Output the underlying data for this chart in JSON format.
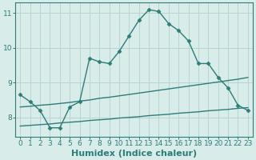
{
  "background_color": "#d8ecea",
  "grid_color": "#b8d4d0",
  "line_color": "#2d7d78",
  "xlabel": "Humidex (Indice chaleur)",
  "xlim": [
    -0.5,
    23.5
  ],
  "ylim": [
    7.45,
    11.3
  ],
  "yticks": [
    8,
    9,
    10,
    11
  ],
  "xticks": [
    0,
    1,
    2,
    3,
    4,
    5,
    6,
    7,
    8,
    9,
    10,
    11,
    12,
    13,
    14,
    15,
    16,
    17,
    18,
    19,
    20,
    21,
    22,
    23
  ],
  "line1_x": [
    0,
    1,
    2,
    3,
    4,
    5,
    6,
    7,
    8,
    9,
    10,
    11,
    12,
    13,
    14,
    15,
    16,
    17,
    18,
    19,
    20,
    21,
    22,
    23
  ],
  "line1_y": [
    8.65,
    8.45,
    8.2,
    7.7,
    7.7,
    8.3,
    8.45,
    9.7,
    9.6,
    9.55,
    9.9,
    10.35,
    10.8,
    11.1,
    11.05,
    10.7,
    10.5,
    10.2,
    9.55,
    9.55,
    9.15,
    8.85,
    8.35,
    8.2
  ],
  "line2_x": [
    0,
    1,
    2,
    3,
    4,
    5,
    6,
    7,
    8,
    9,
    10,
    11,
    12,
    13,
    14,
    15,
    16,
    17,
    18,
    19,
    20,
    21,
    22,
    23
  ],
  "line2_y": [
    8.3,
    8.32,
    8.35,
    8.37,
    8.4,
    8.43,
    8.47,
    8.5,
    8.55,
    8.58,
    8.62,
    8.66,
    8.7,
    8.74,
    8.78,
    8.82,
    8.86,
    8.9,
    8.94,
    8.98,
    9.02,
    9.06,
    9.1,
    9.15
  ],
  "line3_x": [
    0,
    1,
    2,
    3,
    4,
    5,
    6,
    7,
    8,
    9,
    10,
    11,
    12,
    13,
    14,
    15,
    16,
    17,
    18,
    19,
    20,
    21,
    22,
    23
  ],
  "line3_y": [
    7.75,
    7.77,
    7.79,
    7.81,
    7.84,
    7.86,
    7.88,
    7.91,
    7.93,
    7.95,
    7.98,
    8.0,
    8.02,
    8.05,
    8.07,
    8.09,
    8.12,
    8.14,
    8.16,
    8.19,
    8.21,
    8.23,
    8.26,
    8.28
  ],
  "marker": "D",
  "markersize": 2.5,
  "linewidth": 1.0,
  "xlabel_fontsize": 8,
  "tick_fontsize": 6.5
}
